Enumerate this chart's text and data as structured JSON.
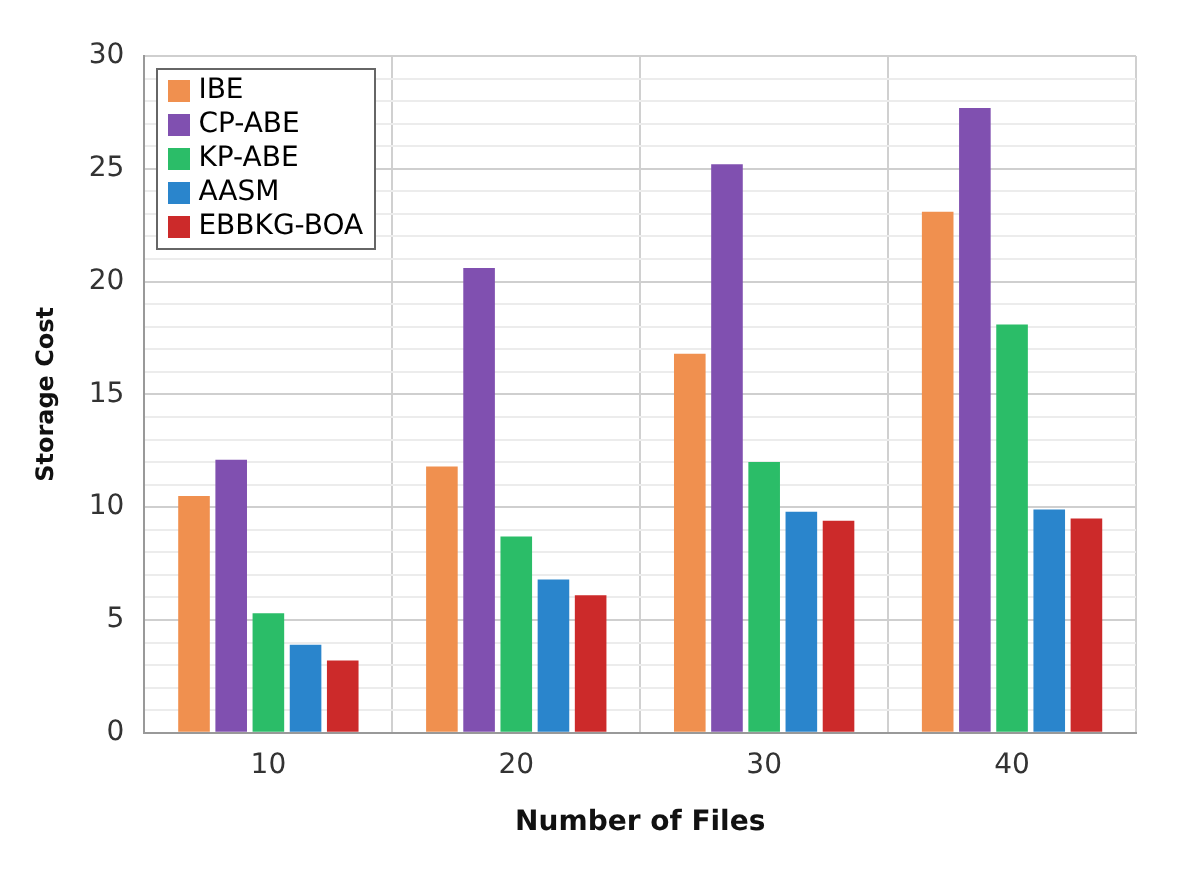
{
  "chart_data": {
    "type": "bar",
    "xlabel": "Number of Files",
    "ylabel": "Storage Cost",
    "categories": [
      "10",
      "20",
      "30",
      "40"
    ],
    "series": [
      {
        "name": "IBE",
        "color": "#f0904f",
        "values": [
          10.5,
          11.8,
          16.8,
          23.1
        ]
      },
      {
        "name": "CP-ABE",
        "color": "#8050b0",
        "values": [
          12.1,
          20.6,
          25.2,
          27.7
        ]
      },
      {
        "name": "KP-ABE",
        "color": "#2bbd68",
        "values": [
          5.3,
          8.7,
          12.0,
          18.1
        ]
      },
      {
        "name": "AASM",
        "color": "#2a85cc",
        "values": [
          3.9,
          6.8,
          9.8,
          9.9
        ]
      },
      {
        "name": "EBBKG-BOA",
        "color": "#cc2a2a",
        "values": [
          3.2,
          6.1,
          9.4,
          9.5
        ]
      }
    ],
    "ylim": [
      0,
      30
    ],
    "yticks": [
      0,
      {
        "value": 1,
        "label": null
      },
      {
        "value": 2,
        "label": null
      },
      {
        "value": 3,
        "label": null
      },
      {
        "value": 4,
        "label": null
      },
      5,
      {
        "value": 6,
        "label": null
      },
      {
        "value": 7,
        "label": null
      },
      {
        "value": 8,
        "label": null
      },
      {
        "value": 9,
        "label": null
      },
      10,
      {
        "value": 11,
        "label": null
      },
      {
        "value": 12,
        "label": null
      },
      {
        "value": 13,
        "label": null
      },
      {
        "value": 14,
        "label": null
      },
      15,
      {
        "value": 16,
        "label": null
      },
      {
        "value": 17,
        "label": null
      },
      {
        "value": 18,
        "label": null
      },
      {
        "value": 19,
        "label": null
      },
      20,
      {
        "value": 21,
        "label": null
      },
      {
        "value": 22,
        "label": null
      },
      {
        "value": 23,
        "label": null
      },
      {
        "value": 24,
        "label": null
      },
      25,
      {
        "value": 26,
        "label": null
      },
      {
        "value": 27,
        "label": null
      },
      {
        "value": 28,
        "label": null
      },
      {
        "value": 29,
        "label": null
      },
      30
    ],
    "grid": true,
    "legend": "top left"
  }
}
